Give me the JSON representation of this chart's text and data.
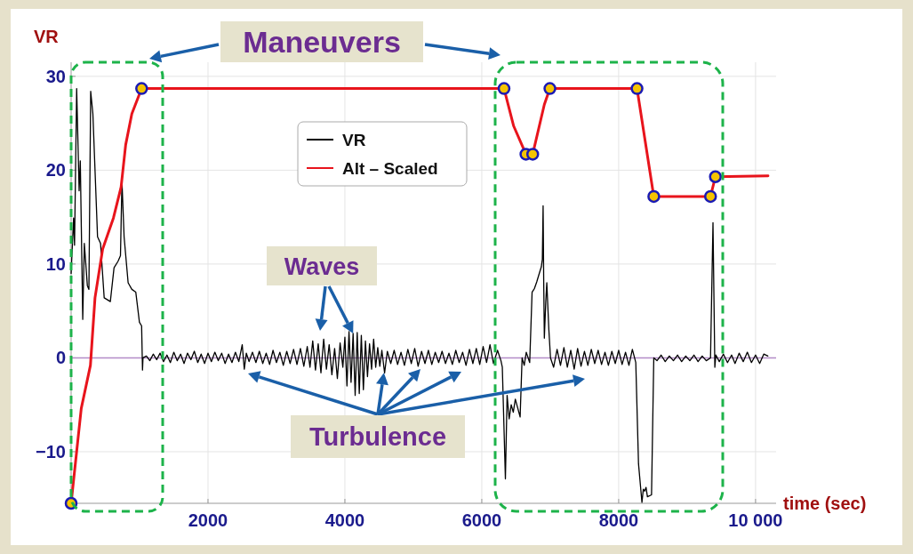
{
  "chart_data": {
    "type": "line",
    "xlabel": "time (sec)",
    "ylabel": "VR",
    "xlim": [
      0,
      10300
    ],
    "ylim": [
      -15.5,
      31.5
    ],
    "xticks": [
      2000,
      4000,
      6000,
      8000,
      {
        "value": 10000,
        "label": "10 000"
      }
    ],
    "yticks": [
      {
        "value": -10,
        "label": "−10"
      },
      0,
      10,
      20,
      30
    ],
    "grid": true,
    "legend": "top",
    "ref_lines": [
      {
        "axis": "y",
        "value": 0,
        "color": "#b48cc8"
      }
    ],
    "annotations": [
      "Maneuvers",
      {
        "text": "Waves",
        "x": 4120,
        "y": 2.6
      },
      {
        "text": "Turbulence",
        "x": 4570,
        "y": -1.6
      }
    ],
    "series": [
      {
        "name": "VR",
        "color": "#000000",
        "x": [
          0,
          36,
          50,
          81,
          117,
          134,
          170,
          193,
          237,
          260,
          286,
          318,
          386,
          430,
          483,
          573,
          627,
          686,
          721,
          743,
          774,
          833,
          887,
          945,
          998,
          1030,
          1043,
          1050,
          1100,
          1150,
          1200,
          1250,
          1300,
          1350,
          1400,
          1450,
          1500,
          1550,
          1600,
          1650,
          1700,
          1750,
          1800,
          1850,
          1900,
          1950,
          2000,
          2050,
          2100,
          2150,
          2200,
          2250,
          2300,
          2350,
          2400,
          2450,
          2500,
          2530,
          2560,
          2600,
          2650,
          2700,
          2750,
          2800,
          2850,
          2900,
          2950,
          3000,
          3050,
          3100,
          3150,
          3200,
          3250,
          3300,
          3350,
          3400,
          3450,
          3490,
          3530,
          3570,
          3610,
          3650,
          3690,
          3730,
          3770,
          3810,
          3850,
          3890,
          3930,
          3970,
          4000,
          4030,
          4060,
          4090,
          4120,
          4150,
          4180,
          4210,
          4240,
          4270,
          4300,
          4330,
          4360,
          4390,
          4420,
          4450,
          4480,
          4510,
          4540,
          4580,
          4620,
          4670,
          4720,
          4770,
          4820,
          4870,
          4920,
          4970,
          5020,
          5070,
          5120,
          5170,
          5220,
          5270,
          5320,
          5370,
          5420,
          5470,
          5520,
          5570,
          5620,
          5670,
          5720,
          5770,
          5820,
          5870,
          5920,
          5970,
          6020,
          6070,
          6120,
          6170,
          6230,
          6280,
          6300,
          6345,
          6370,
          6400,
          6430,
          6460,
          6490,
          6520,
          6560,
          6589,
          6620,
          6650,
          6700,
          6735,
          6770,
          6803,
          6840,
          6870,
          6885,
          6896,
          6905,
          6914,
          6935,
          6950,
          6980,
          7004,
          7050,
          7100,
          7150,
          7200,
          7250,
          7300,
          7350,
          7400,
          7450,
          7500,
          7550,
          7600,
          7650,
          7700,
          7750,
          7800,
          7850,
          7900,
          7950,
          8000,
          8050,
          8100,
          8150,
          8200,
          8250,
          8290,
          8340,
          8360,
          8380,
          8400,
          8420,
          8480,
          8513,
          8560,
          8620,
          8680,
          8740,
          8800,
          8860,
          8920,
          8980,
          9040,
          9100,
          9160,
          9220,
          9280,
          9342,
          9378,
          9405,
          9420,
          9470,
          9530,
          9590,
          9650,
          9700,
          9760,
          9820,
          9880,
          9940,
          10000,
          10060,
          10120,
          10180
        ],
        "values": [
          9.0,
          14.9,
          12,
          28.7,
          17.8,
          21,
          4.1,
          12.2,
          7.7,
          7.3,
          28.4,
          26,
          12.9,
          12.2,
          6.4,
          6.0,
          9.6,
          10.3,
          10.9,
          18.8,
          12.9,
          8,
          7.3,
          7,
          3.8,
          3.4,
          -1.3,
          0,
          0.2,
          -0.3,
          0.4,
          -0.2,
          0.5,
          -0.4,
          0.3,
          -0.5,
          0.6,
          -0.3,
          0.4,
          -0.6,
          0.5,
          -0.2,
          0.7,
          -0.5,
          0.4,
          -0.6,
          0.5,
          -0.4,
          0.6,
          -0.3,
          0.5,
          -0.6,
          0.4,
          -0.5,
          0.6,
          -0.4,
          1.4,
          -1.2,
          0.5,
          -0.4,
          0.6,
          -0.5,
          0.7,
          -0.6,
          0.5,
          -0.7,
          0.8,
          -0.5,
          0.6,
          -0.8,
          0.7,
          -0.6,
          0.9,
          -0.7,
          1.0,
          -0.9,
          1.2,
          -1.0,
          1.8,
          -1.3,
          1.5,
          -1.6,
          2.0,
          -1.2,
          1.4,
          -1.8,
          1.0,
          -2.2,
          1.6,
          -1.0,
          2.2,
          -3.0,
          2.8,
          -2.6,
          2.6,
          -4.0,
          2.7,
          -3.8,
          2.4,
          -3.4,
          1.8,
          -2.0,
          1.5,
          -1.2,
          2.0,
          -1.0,
          1.1,
          -0.9,
          0.8,
          -1.6,
          0.7,
          -0.6,
          0.8,
          -0.7,
          0.6,
          -0.8,
          0.9,
          -0.6,
          1.0,
          -0.9,
          0.7,
          -0.6,
          0.8,
          -0.7,
          0.6,
          -0.5,
          0.7,
          -0.6,
          0.5,
          -0.7,
          0.8,
          -0.5,
          0.6,
          -0.8,
          0.9,
          -0.6,
          1.0,
          -0.7,
          1.2,
          -0.5,
          1.4,
          -0.6,
          0.8,
          -0.3,
          -1.0,
          -12.9,
          -4.0,
          -6.5,
          -5.0,
          -5.8,
          -4.4,
          -5.2,
          -6.3,
          0,
          -0.8,
          0.6,
          -0.5,
          7.0,
          7.4,
          8.1,
          9.0,
          9.7,
          10.5,
          16.2,
          8,
          2.1,
          6,
          8,
          3,
          0,
          -1.0,
          0.9,
          -0.8,
          1.1,
          -1.0,
          0.8,
          -1.2,
          1.0,
          -0.9,
          0.7,
          -0.8,
          0.9,
          -0.6,
          0.8,
          -0.7,
          0.6,
          -0.8,
          0.7,
          -0.6,
          0.8,
          -0.7,
          0.6,
          -0.8,
          0.9,
          -0.5,
          -11.3,
          -15.4,
          -14.0,
          -14.2,
          -13.8,
          -14.8,
          -14.6,
          0,
          -0.3,
          0.3,
          -0.4,
          0.2,
          -0.3,
          0.3,
          -0.4,
          0.2,
          -0.3,
          0.3,
          -0.4,
          0.2,
          -0.3,
          0,
          14.4,
          -1.0,
          0.3,
          -0.4,
          0.4,
          -0.5,
          0.3,
          -0.6,
          0.5,
          -0.4,
          0.6,
          -0.5,
          0.3,
          -0.6,
          0.4,
          0.2
        ]
      },
      {
        "name": "Alt – Scaled",
        "color": "#e8141c",
        "x": [
          0,
          148,
          282,
          349,
          461,
          618,
          730,
          797,
          887,
          1030,
          6325,
          6466,
          6645,
          6744,
          6914,
          6995,
          8268,
          8513,
          9342,
          9413,
          10182
        ],
        "values": [
          -15.5,
          -5.4,
          -0.8,
          6.4,
          11.6,
          14.9,
          18.2,
          22.7,
          26,
          28.7,
          28.7,
          24.7,
          21.7,
          21.7,
          27,
          28.7,
          28.7,
          17.2,
          17.2,
          19.3,
          19.4
        ]
      },
      {
        "color": "#1a1ab4",
        "type": "scatter",
        "marker": "circle",
        "x": [
          0,
          1030,
          6325,
          6645,
          6744,
          6995,
          8268,
          8513,
          9342,
          9413
        ],
        "values": [
          -15.5,
          28.7,
          28.7,
          21.7,
          21.7,
          28.7,
          28.7,
          17.2,
          17.2,
          19.3
        ]
      }
    ]
  }
}
